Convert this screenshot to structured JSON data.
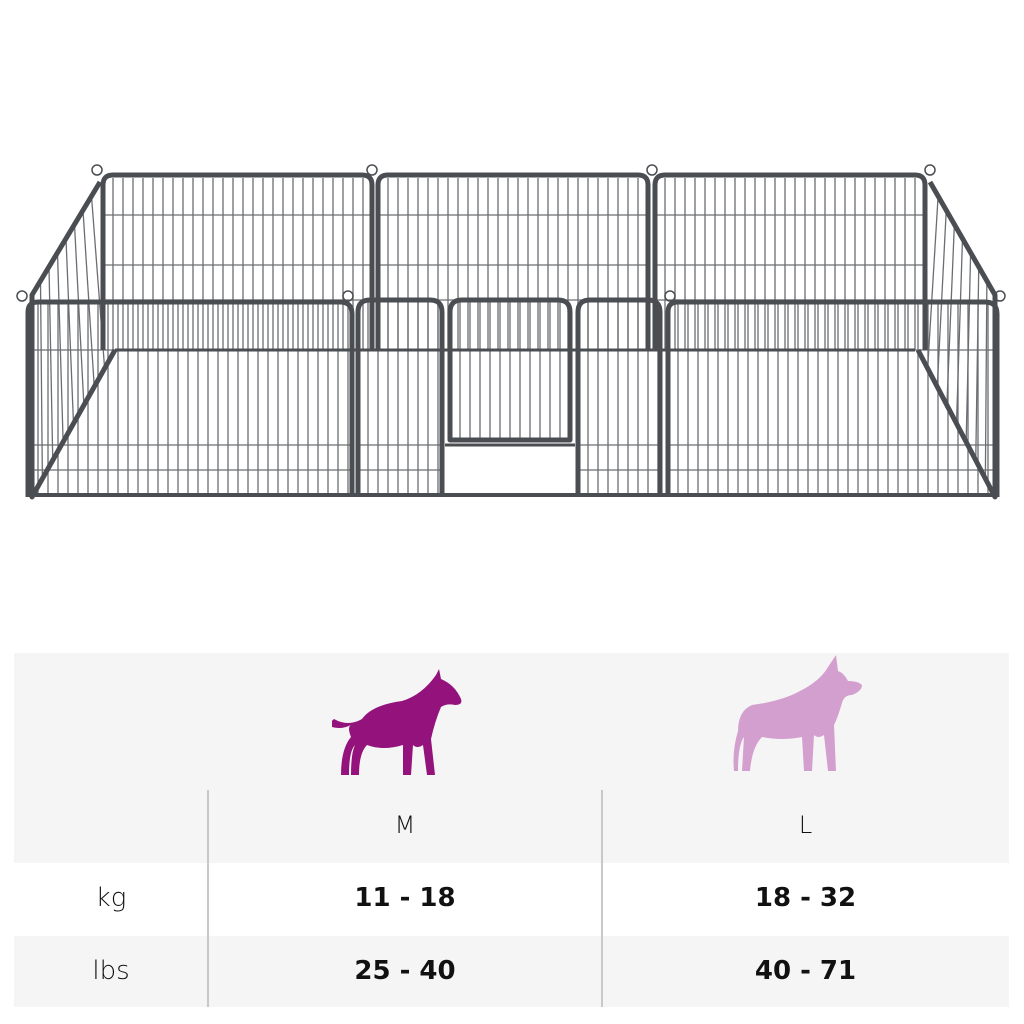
{
  "product_image": {
    "icon": "dog-playpen-8-panels",
    "frame_color": "#4a4d52"
  },
  "size_table": {
    "sizes": [
      {
        "label": "M",
        "icon": "bull-terrier-silhouette",
        "color": "#93127b"
      },
      {
        "label": "L",
        "icon": "shepherd-dog-silhouette",
        "color": "#d39fcf"
      }
    ],
    "rows": [
      {
        "unit": "kg",
        "values": [
          "11 - 18",
          "18 - 32"
        ]
      },
      {
        "unit": "lbs",
        "values": [
          "25 - 40",
          "40 - 71"
        ]
      }
    ]
  }
}
